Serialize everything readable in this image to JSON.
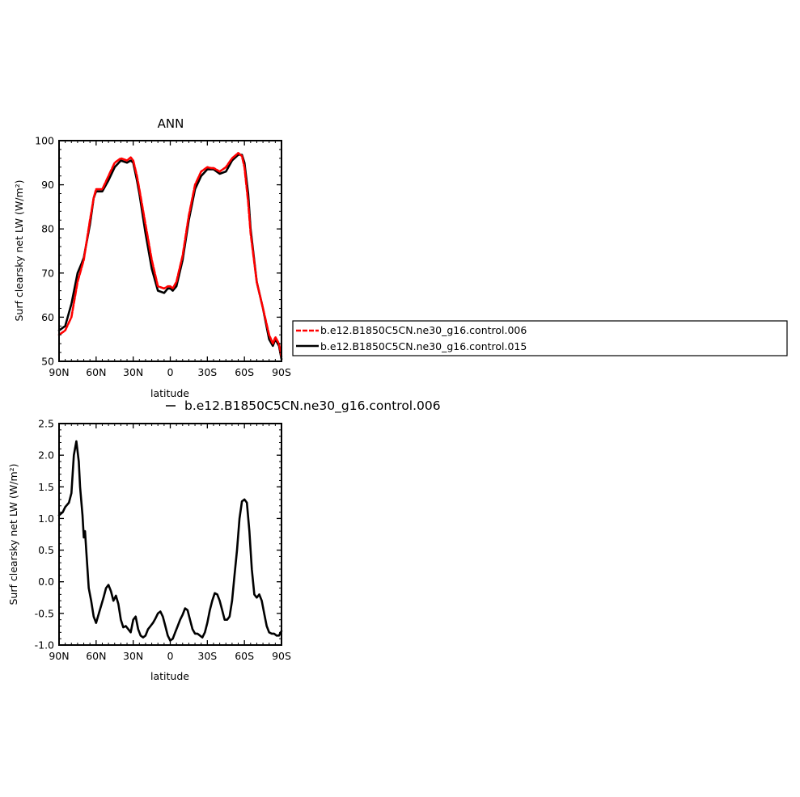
{
  "chart_data": [
    {
      "type": "line",
      "title": "ANN",
      "xlabel": "latitude",
      "ylabel": "Surf clearsky net LW (W/m²)",
      "x_ticks": [
        "90N",
        "60N",
        "30N",
        "0",
        "30S",
        "60S",
        "90S"
      ],
      "x_tick_values": [
        90,
        60,
        30,
        0,
        -30,
        -60,
        -90
      ],
      "xlim": [
        90,
        -90
      ],
      "y_ticks": [
        "50",
        "60",
        "70",
        "80",
        "90",
        "100"
      ],
      "ylim": [
        50,
        100
      ],
      "legend_placement": "right",
      "series": [
        {
          "name": "b.e12.B1850C5CN.ne30_g16.control.006",
          "color": "#ff0000",
          "style": "dashed",
          "x": [
            90,
            85,
            80,
            75,
            72,
            70,
            65,
            62,
            60,
            55,
            50,
            45,
            40,
            35,
            32,
            30,
            27,
            25,
            20,
            15,
            10,
            5,
            2,
            0,
            -2,
            -5,
            -10,
            -15,
            -20,
            -25,
            -30,
            -33,
            -35,
            -40,
            -45,
            -50,
            -55,
            -58,
            -60,
            -63,
            -65,
            -70,
            -75,
            -80,
            -83,
            -85,
            -88,
            -90
          ],
          "y": [
            56,
            57,
            60,
            68,
            71,
            73,
            82,
            87,
            89,
            89,
            92,
            95,
            96,
            95.5,
            96.2,
            95.5,
            92,
            89,
            81,
            73,
            67,
            66.5,
            67,
            67,
            66.5,
            68,
            74,
            83,
            90,
            93,
            94,
            93.8,
            93.8,
            93,
            94,
            96,
            97.2,
            96.5,
            94,
            86,
            79,
            68,
            62,
            56,
            54,
            55.5,
            54,
            51
          ]
        },
        {
          "name": "b.e12.B1850C5CN.ne30_g16.control.015",
          "color": "#000000",
          "style": "solid",
          "x": [
            90,
            85,
            80,
            75,
            72,
            70,
            65,
            62,
            60,
            55,
            50,
            45,
            40,
            35,
            32,
            30,
            27,
            25,
            20,
            15,
            10,
            5,
            2,
            0,
            -2,
            -5,
            -10,
            -15,
            -20,
            -25,
            -30,
            -33,
            -35,
            -40,
            -45,
            -50,
            -55,
            -58,
            -60,
            -63,
            -65,
            -70,
            -75,
            -80,
            -83,
            -85,
            -88,
            -90
          ],
          "y": [
            57,
            58,
            63,
            70,
            72,
            73.5,
            81,
            87,
            88.5,
            88.5,
            91,
            94,
            95.5,
            95,
            95.5,
            95,
            91,
            88,
            79,
            71,
            66,
            65.5,
            66.5,
            66.5,
            66,
            67,
            73,
            82,
            89,
            92,
            93.5,
            93.5,
            93.5,
            92.5,
            93,
            95.5,
            96.8,
            96.8,
            95,
            88,
            80,
            68,
            62,
            55,
            53.5,
            55,
            53.5,
            50.5
          ]
        }
      ]
    },
    {
      "type": "line",
      "title": "b.e12.B1850C5CN.ne30_g16.control.006",
      "xlabel": "latitude",
      "ylabel": "Surf clearsky net LW (W/m²)",
      "x_ticks": [
        "90N",
        "60N",
        "30N",
        "0",
        "30S",
        "60S",
        "90S"
      ],
      "x_tick_values": [
        90,
        60,
        30,
        0,
        -30,
        -60,
        -90
      ],
      "xlim": [
        90,
        -90
      ],
      "y_ticks": [
        "2.5",
        "2.0",
        "1.5",
        "1.0",
        "0.5",
        "0.0",
        "-0.5",
        "-1.0"
      ],
      "ylim": [
        -1.0,
        2.5
      ],
      "series": [
        {
          "color": "#000000",
          "style": "solid",
          "x": [
            90,
            87,
            85,
            82,
            80,
            78,
            76,
            74,
            73,
            71,
            70,
            69,
            68,
            66,
            64,
            62,
            60,
            57,
            54,
            52,
            50,
            48,
            46,
            44,
            42,
            40,
            38,
            36,
            34,
            32,
            30,
            28,
            26,
            24,
            22,
            20,
            18,
            16,
            14,
            12,
            10,
            8,
            6,
            4,
            2,
            0,
            -2,
            -4,
            -6,
            -8,
            -10,
            -12,
            -14,
            -16,
            -18,
            -20,
            -22,
            -24,
            -26,
            -28,
            -30,
            -32,
            -34,
            -36,
            -38,
            -40,
            -42,
            -44,
            -46,
            -48,
            -50,
            -52,
            -54,
            -56,
            -58,
            -60,
            -62,
            -64,
            -66,
            -68,
            -70,
            -72,
            -74,
            -76,
            -78,
            -80,
            -82,
            -84,
            -86,
            -88,
            -90
          ],
          "y": [
            1.05,
            1.1,
            1.18,
            1.25,
            1.4,
            2.0,
            2.22,
            1.9,
            1.5,
            1.05,
            0.7,
            0.8,
            0.5,
            -0.1,
            -0.3,
            -0.55,
            -0.65,
            -0.45,
            -0.25,
            -0.1,
            -0.05,
            -0.15,
            -0.3,
            -0.22,
            -0.35,
            -0.6,
            -0.72,
            -0.7,
            -0.75,
            -0.8,
            -0.6,
            -0.55,
            -0.75,
            -0.85,
            -0.88,
            -0.85,
            -0.75,
            -0.7,
            -0.65,
            -0.58,
            -0.5,
            -0.47,
            -0.55,
            -0.7,
            -0.85,
            -0.93,
            -0.9,
            -0.8,
            -0.7,
            -0.6,
            -0.52,
            -0.42,
            -0.45,
            -0.6,
            -0.75,
            -0.82,
            -0.82,
            -0.85,
            -0.88,
            -0.8,
            -0.65,
            -0.45,
            -0.3,
            -0.18,
            -0.2,
            -0.3,
            -0.45,
            -0.6,
            -0.6,
            -0.55,
            -0.3,
            0.1,
            0.5,
            1.0,
            1.27,
            1.3,
            1.25,
            0.8,
            0.2,
            -0.2,
            -0.25,
            -0.2,
            -0.3,
            -0.5,
            -0.7,
            -0.8,
            -0.82,
            -0.82,
            -0.85,
            -0.85,
            -0.78
          ]
        }
      ]
    }
  ]
}
